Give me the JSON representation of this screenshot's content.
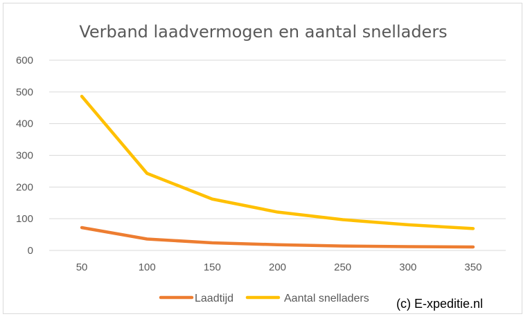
{
  "chart_data": {
    "type": "line",
    "title": "Verband laadvermogen en aantal snelladers",
    "xlabel": "",
    "ylabel": "",
    "x": [
      50,
      100,
      150,
      200,
      250,
      300,
      350
    ],
    "ylim": [
      0,
      600
    ],
    "yticks": [
      0,
      100,
      200,
      300,
      400,
      500,
      600
    ],
    "grid": true,
    "legend_position": "bottom",
    "series": [
      {
        "name": "Laadtijd",
        "color": "#ED7D31",
        "values": [
          72,
          36,
          24,
          18,
          14,
          12,
          11
        ]
      },
      {
        "name": "Aantal snelladers",
        "color": "#FFC000",
        "values": [
          486,
          243,
          162,
          121,
          97,
          81,
          69
        ]
      }
    ]
  },
  "credit": "(c) E-xpeditie.nl"
}
